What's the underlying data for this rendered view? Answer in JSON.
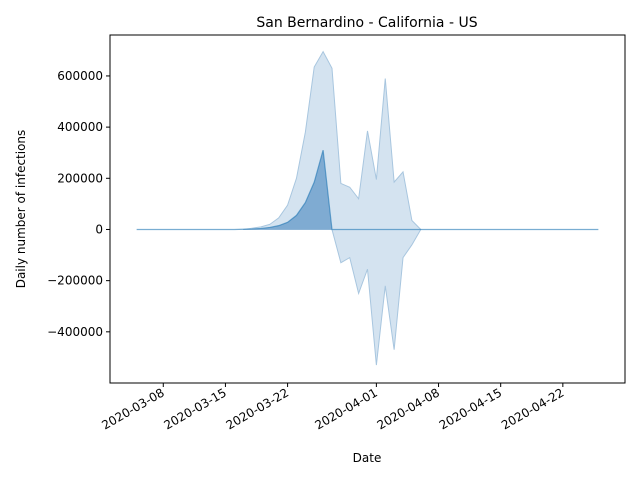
{
  "chart_data": {
    "type": "area",
    "title": "San Bernardino - California - US",
    "xlabel": "Date",
    "ylabel": "Daily number of infections",
    "x_start": "2020-03-05",
    "x_end": "2020-04-26",
    "xlim": [
      "2020-03-02",
      "2020-04-29"
    ],
    "ylim": [
      -600000,
      760000
    ],
    "xtick_labels": [
      "2020-03-08",
      "2020-03-15",
      "2020-03-22",
      "2020-04-01",
      "2020-04-08",
      "2020-04-15",
      "2020-04-22"
    ],
    "ytick_values": [
      -400000,
      -200000,
      0,
      200000,
      400000,
      600000
    ],
    "ytick_labels": [
      "−400000",
      "−200000",
      "0",
      "200000",
      "400000",
      "600000"
    ],
    "grid": false,
    "colors": {
      "band_fill": "#b7d0e6",
      "band_stroke": "#a8c6df",
      "fill": "#5b93c4",
      "line": "#1f77b4"
    },
    "series": [
      {
        "role": "uncertainty band",
        "x": [
          "2020-03-17",
          "2020-03-18",
          "2020-03-19",
          "2020-03-20",
          "2020-03-21",
          "2020-03-22",
          "2020-03-23",
          "2020-03-24",
          "2020-03-25",
          "2020-03-26",
          "2020-03-27",
          "2020-03-28",
          "2020-03-29",
          "2020-03-30",
          "2020-03-31",
          "2020-04-01",
          "2020-04-02",
          "2020-04-03",
          "2020-04-04",
          "2020-04-05",
          "2020-04-06"
        ],
        "upper": [
          0,
          5000,
          10000,
          20000,
          45000,
          95000,
          200000,
          380000,
          635000,
          695000,
          630000,
          180000,
          165000,
          120000,
          385000,
          195000,
          590000,
          185000,
          225000,
          35000,
          0
        ],
        "lower": [
          0,
          0,
          0,
          0,
          0,
          0,
          0,
          0,
          0,
          0,
          0,
          -130000,
          -110000,
          -250000,
          -155000,
          -530000,
          -220000,
          -470000,
          -110000,
          -60000,
          0
        ]
      },
      {
        "role": "estimate",
        "x": [
          "2020-03-05",
          "2020-03-16",
          "2020-03-17",
          "2020-03-18",
          "2020-03-19",
          "2020-03-20",
          "2020-03-21",
          "2020-03-22",
          "2020-03-23",
          "2020-03-24",
          "2020-03-25",
          "2020-03-26",
          "2020-03-27",
          "2020-04-26"
        ],
        "values": [
          0,
          0,
          1000,
          2000,
          4000,
          8000,
          15000,
          28000,
          55000,
          105000,
          185000,
          310000,
          0,
          0
        ]
      }
    ]
  }
}
